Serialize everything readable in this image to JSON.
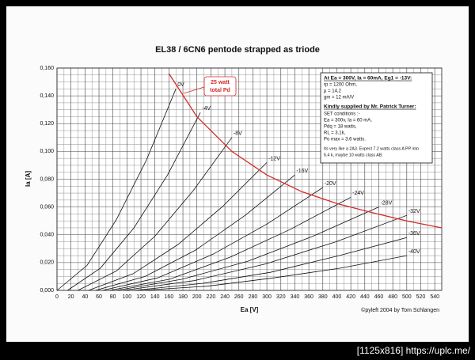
{
  "chart_data": {
    "type": "line",
    "title": "EL38 / 6CN6 pentode strapped as triode",
    "x_label": "Ea [V]",
    "y_label": "Ia [A]",
    "xlim": [
      0,
      550
    ],
    "xticks": [
      0,
      20,
      40,
      60,
      80,
      100,
      120,
      140,
      160,
      180,
      200,
      220,
      240,
      260,
      280,
      300,
      320,
      340,
      360,
      380,
      400,
      420,
      440,
      460,
      480,
      500,
      520,
      540
    ],
    "ylim": [
      0,
      0.16
    ],
    "yticks": [
      {
        "value": 0,
        "label": "0,000"
      },
      {
        "value": 0.02,
        "label": "0,020"
      },
      {
        "value": 0.04,
        "label": "0,040"
      },
      {
        "value": 0.06,
        "label": "0,060"
      },
      {
        "value": 0.08,
        "label": "0,080"
      },
      {
        "value": 0.1,
        "label": "0,100"
      },
      {
        "value": 0.12,
        "label": "0,120"
      },
      {
        "value": 0.14,
        "label": "0,140"
      },
      {
        "value": 0.16,
        "label": "0,160"
      }
    ],
    "grid": true,
    "series": [
      {
        "name": "0V",
        "color": "#111111",
        "x": [
          0,
          43,
          85,
          128,
          170
        ],
        "values": [
          0,
          0.018,
          0.051,
          0.094,
          0.145
        ]
      },
      {
        "name": "-4V",
        "color": "#111111",
        "x": [
          15,
          62,
          110,
          158,
          205
        ],
        "values": [
          0,
          0.016,
          0.045,
          0.083,
          0.128
        ]
      },
      {
        "name": "-8V",
        "color": "#111111",
        "x": [
          30,
          85,
          140,
          195,
          250
        ],
        "values": [
          0,
          0.014,
          0.039,
          0.072,
          0.11
        ]
      },
      {
        "name": "-12V",
        "color": "#111111",
        "x": [
          45,
          109,
          173,
          236,
          300
        ],
        "values": [
          0,
          0.012,
          0.033,
          0.06,
          0.092
        ]
      },
      {
        "name": "-16V",
        "color": "#111111",
        "x": [
          55,
          126,
          198,
          269,
          340
        ],
        "values": [
          0,
          0.01,
          0.029,
          0.054,
          0.083
        ]
      },
      {
        "name": "-20V",
        "color": "#111111",
        "x": [
          65,
          144,
          223,
          301,
          380
        ],
        "values": [
          0,
          0.009,
          0.026,
          0.048,
          0.074
        ]
      },
      {
        "name": "-24V",
        "color": "#111111",
        "x": [
          75,
          161,
          248,
          334,
          420
        ],
        "values": [
          0,
          0.008,
          0.024,
          0.044,
          0.067
        ]
      },
      {
        "name": "-28V",
        "color": "#111111",
        "x": [
          85,
          179,
          273,
          366,
          460
        ],
        "values": [
          0,
          0.008,
          0.021,
          0.039,
          0.06
        ]
      },
      {
        "name": "-32V",
        "color": "#111111",
        "x": [
          95,
          196,
          298,
          399,
          500
        ],
        "values": [
          0,
          0.007,
          0.019,
          0.035,
          0.054
        ]
      },
      {
        "name": "-36V",
        "color": "#111111",
        "x": [
          110,
          208,
          305,
          403,
          500
        ],
        "values": [
          0,
          0.005,
          0.013,
          0.025,
          0.038
        ]
      },
      {
        "name": "-40V",
        "color": "#111111",
        "x": [
          120,
          215,
          310,
          405,
          500
        ],
        "values": [
          0,
          0.003,
          0.009,
          0.016,
          0.025
        ]
      }
    ],
    "pd_curve": {
      "color": "#d42a2a",
      "x": [
        160,
        200,
        250,
        300,
        350,
        400,
        450,
        500,
        550
      ],
      "values": [
        0.156,
        0.125,
        0.1,
        0.083,
        0.071,
        0.0625,
        0.056,
        0.05,
        0.045
      ]
    },
    "pd_annotation": [
      "25 watt",
      "total Pd"
    ],
    "info_box": [
      "At Ea = 300V, Ia = 60mA, Eg1 = -13V:",
      "rp = 1200 Ohm,",
      "μ  = 14,2",
      "gm = 12 mA/V",
      "Kindly supplied by Mr. Patrick Turner:",
      "SET conditions :-",
      "Ea = 300v, Ia = 60 mA,",
      "Pdq = 18 watts,",
      "RL = 3.1k,",
      "Po max = 3.6 watts.",
      "Its very like a 2A3. Expect 7.2 watts class A PP into",
      "6.4 k, maybe 10 watts class AB."
    ],
    "credit": "©pyleft 2004 by Tom Schlangen"
  },
  "footer": "[1125x816] https://uplc.me/"
}
